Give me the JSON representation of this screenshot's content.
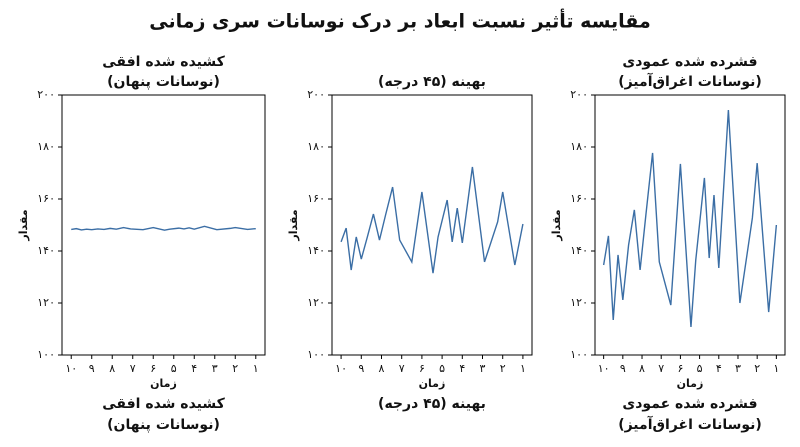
{
  "title": "مقایسه تأثیر نسبت ابعاد بر درک نوسانات سری زمانی",
  "chart_data": [
    {
      "type": "line",
      "title_lines": [
        "کشیده شده افقی",
        "(نوسانات پنهان)"
      ],
      "caption_lines": [
        "کشیده شده افقی",
        "(نوسانات پنهان)"
      ],
      "xlabel": "زمان",
      "ylabel": "مقدار",
      "x": [
        10,
        9.75,
        9.5,
        9.25,
        9,
        8.7,
        8.4,
        8.1,
        7.8,
        7.45,
        7.1,
        6.5,
        6,
        5.45,
        5.2,
        4.75,
        4.5,
        4.25,
        4,
        3.5,
        2.9,
        2.25,
        2,
        1.4,
        1
      ],
      "series": [
        {
          "color": "#3b6ea5",
          "values": [
            148.3,
            148.6,
            148.1,
            148.4,
            148.2,
            148.5,
            148.3,
            148.7,
            148.4,
            149,
            148.5,
            148.2,
            149,
            148,
            148.4,
            148.8,
            148.5,
            148.9,
            148.4,
            149.5,
            148.2,
            148.7,
            149,
            148.3,
            148.6
          ]
        }
      ],
      "xlim": [
        10.45,
        0.55
      ],
      "ylim": [
        100,
        200
      ],
      "xticks": [
        {
          "value": 10,
          "label": "۱۰"
        },
        {
          "value": 9,
          "label": "۹"
        },
        {
          "value": 8,
          "label": "۸"
        },
        {
          "value": 7,
          "label": "۷"
        },
        {
          "value": 6,
          "label": "۶"
        },
        {
          "value": 5,
          "label": "۵"
        },
        {
          "value": 4,
          "label": "۴"
        },
        {
          "value": 3,
          "label": "۳"
        },
        {
          "value": 2,
          "label": "۲"
        },
        {
          "value": 1,
          "label": "۱"
        }
      ],
      "yticks": [
        {
          "value": 100,
          "label": "۱۰۰"
        },
        {
          "value": 120,
          "label": "۱۲۰"
        },
        {
          "value": 140,
          "label": "۱۴۰"
        },
        {
          "value": 160,
          "label": "۱۶۰"
        },
        {
          "value": 180,
          "label": "۱۸۰"
        },
        {
          "value": 200,
          "label": "۲۰۰"
        }
      ]
    },
    {
      "type": "line",
      "title_lines": [
        "بهینه (۴۵ درجه)"
      ],
      "caption_lines": [
        "بهینه (۴۵ درجه)"
      ],
      "xlabel": "زمان",
      "ylabel": "مقدار",
      "x": [
        10,
        9.75,
        9.5,
        9.25,
        9,
        8.7,
        8.4,
        8.1,
        7.8,
        7.45,
        7.1,
        6.5,
        6,
        5.45,
        5.2,
        4.75,
        4.5,
        4.25,
        4,
        3.5,
        2.9,
        2.25,
        2,
        1.4,
        1
      ],
      "series": [
        {
          "color": "#3b6ea5",
          "values": [
            143.5,
            148.8,
            132.7,
            145.4,
            136.9,
            145.4,
            154.2,
            144.2,
            153.8,
            164.6,
            144.2,
            135.8,
            162.7,
            131.5,
            145.4,
            159.6,
            143.5,
            156.5,
            143.1,
            172.3,
            135.8,
            151.2,
            162.7,
            134.6,
            150.4
          ]
        }
      ],
      "xlim": [
        10.45,
        0.55
      ],
      "ylim": [
        100,
        200
      ],
      "xticks": [
        {
          "value": 10,
          "label": "۱۰"
        },
        {
          "value": 9,
          "label": "۹"
        },
        {
          "value": 8,
          "label": "۸"
        },
        {
          "value": 7,
          "label": "۷"
        },
        {
          "value": 6,
          "label": "۶"
        },
        {
          "value": 5,
          "label": "۵"
        },
        {
          "value": 4,
          "label": "۴"
        },
        {
          "value": 3,
          "label": "۳"
        },
        {
          "value": 2,
          "label": "۲"
        },
        {
          "value": 1,
          "label": "۱"
        }
      ],
      "yticks": [
        {
          "value": 100,
          "label": "۱۰۰"
        },
        {
          "value": 120,
          "label": "۱۲۰"
        },
        {
          "value": 140,
          "label": "۱۴۰"
        },
        {
          "value": 160,
          "label": "۱۶۰"
        },
        {
          "value": 180,
          "label": "۱۸۰"
        },
        {
          "value": 200,
          "label": "۲۰۰"
        }
      ]
    },
    {
      "type": "line",
      "title_lines": [
        "فشرده شده عمودی",
        "(نوسانات اغراق‌آمیز)"
      ],
      "caption_lines": [
        "فشرده شده عمودی",
        "(نوسانات اغراق‌آمیز)"
      ],
      "xlabel": "زمان",
      "ylabel": "مقدار",
      "x": [
        10,
        9.75,
        9.5,
        9.25,
        9,
        8.7,
        8.4,
        8.1,
        7.8,
        7.45,
        7.1,
        6.5,
        6,
        5.45,
        5.2,
        4.75,
        4.5,
        4.25,
        4,
        3.5,
        2.9,
        2.25,
        2,
        1.4,
        1
      ],
      "series": [
        {
          "color": "#3b6ea5",
          "values": [
            134.6,
            145.8,
            113.5,
            138.5,
            121.2,
            142.3,
            155.8,
            132.7,
            153.8,
            177.7,
            135.8,
            119.2,
            173.5,
            110.8,
            136.5,
            168.1,
            137.3,
            161.5,
            133.5,
            194.2,
            120,
            152.7,
            173.8,
            116.5,
            150
          ]
        }
      ],
      "xlim": [
        10.45,
        0.55
      ],
      "ylim": [
        100,
        200
      ],
      "xticks": [
        {
          "value": 10,
          "label": "۱۰"
        },
        {
          "value": 9,
          "label": "۹"
        },
        {
          "value": 8,
          "label": "۸"
        },
        {
          "value": 7,
          "label": "۷"
        },
        {
          "value": 6,
          "label": "۶"
        },
        {
          "value": 5,
          "label": "۵"
        },
        {
          "value": 4,
          "label": "۴"
        },
        {
          "value": 3,
          "label": "۳"
        },
        {
          "value": 2,
          "label": "۲"
        },
        {
          "value": 1,
          "label": "۱"
        }
      ],
      "yticks": [
        {
          "value": 100,
          "label": "۱۰۰"
        },
        {
          "value": 120,
          "label": "۱۲۰"
        },
        {
          "value": 140,
          "label": "۱۴۰"
        },
        {
          "value": 160,
          "label": "۱۶۰"
        },
        {
          "value": 180,
          "label": "۱۸۰"
        },
        {
          "value": 200,
          "label": "۲۰۰"
        }
      ]
    }
  ]
}
